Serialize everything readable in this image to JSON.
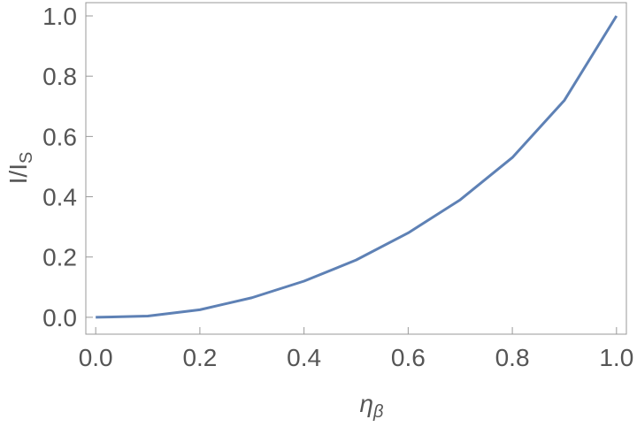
{
  "chart_data": {
    "type": "line",
    "xlabel": "η",
    "xlabel_sub": "β",
    "ylabel": "I/I",
    "ylabel_sub": "S",
    "x": [
      0,
      0.1,
      0.2,
      0.3,
      0.4,
      0.5,
      0.6,
      0.7,
      0.8,
      0.9,
      1
    ],
    "series": [
      {
        "color": "#5e81b5",
        "values": [
          0,
          0.004,
          0.025,
          0.065,
          0.12,
          0.19,
          0.28,
          0.39,
          0.53,
          0.72,
          1
        ]
      }
    ],
    "xlim": [
      -0.019,
      1.019
    ],
    "ylim": [
      -0.056,
      1.044
    ],
    "xticks": [
      {
        "value": 0,
        "label": "0.0"
      },
      0.2,
      0.4,
      0.6,
      0.8,
      {
        "value": 1,
        "label": "1.0"
      }
    ],
    "yticks": [
      {
        "value": 0,
        "label": "0.0"
      },
      0.2,
      0.4,
      0.6,
      0.8,
      {
        "value": 1,
        "label": "1.0"
      }
    ]
  }
}
